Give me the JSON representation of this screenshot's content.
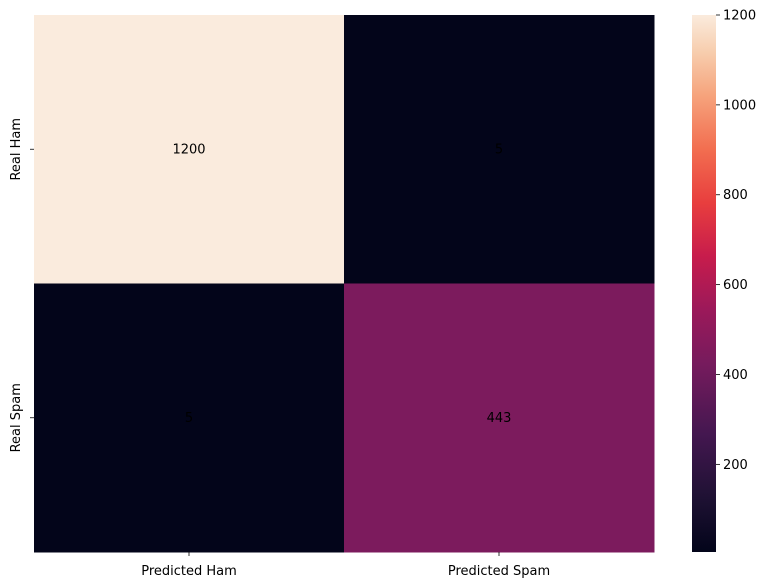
{
  "chart_data": {
    "type": "heatmap",
    "title": "",
    "xlabel": "",
    "ylabel": "",
    "x_categories": [
      "Predicted Ham",
      "Predicted Spam"
    ],
    "y_categories": [
      "Real Ham",
      "Real Spam"
    ],
    "values": [
      [
        1200,
        5
      ],
      [
        5,
        443
      ]
    ],
    "cell_labels": [
      [
        "1200",
        "5"
      ],
      [
        "5",
        "443"
      ]
    ],
    "colormap": "rocket",
    "colorbar": {
      "range": [
        5,
        1200
      ],
      "ticks": [
        200,
        400,
        600,
        800,
        1000,
        1200
      ],
      "tick_labels": [
        "200",
        "400",
        "600",
        "800",
        "1000",
        "1200"
      ]
    },
    "grid": false,
    "colors": {
      "high": "#faebdd",
      "mid": "#921c5b",
      "low": "#03051a"
    }
  }
}
